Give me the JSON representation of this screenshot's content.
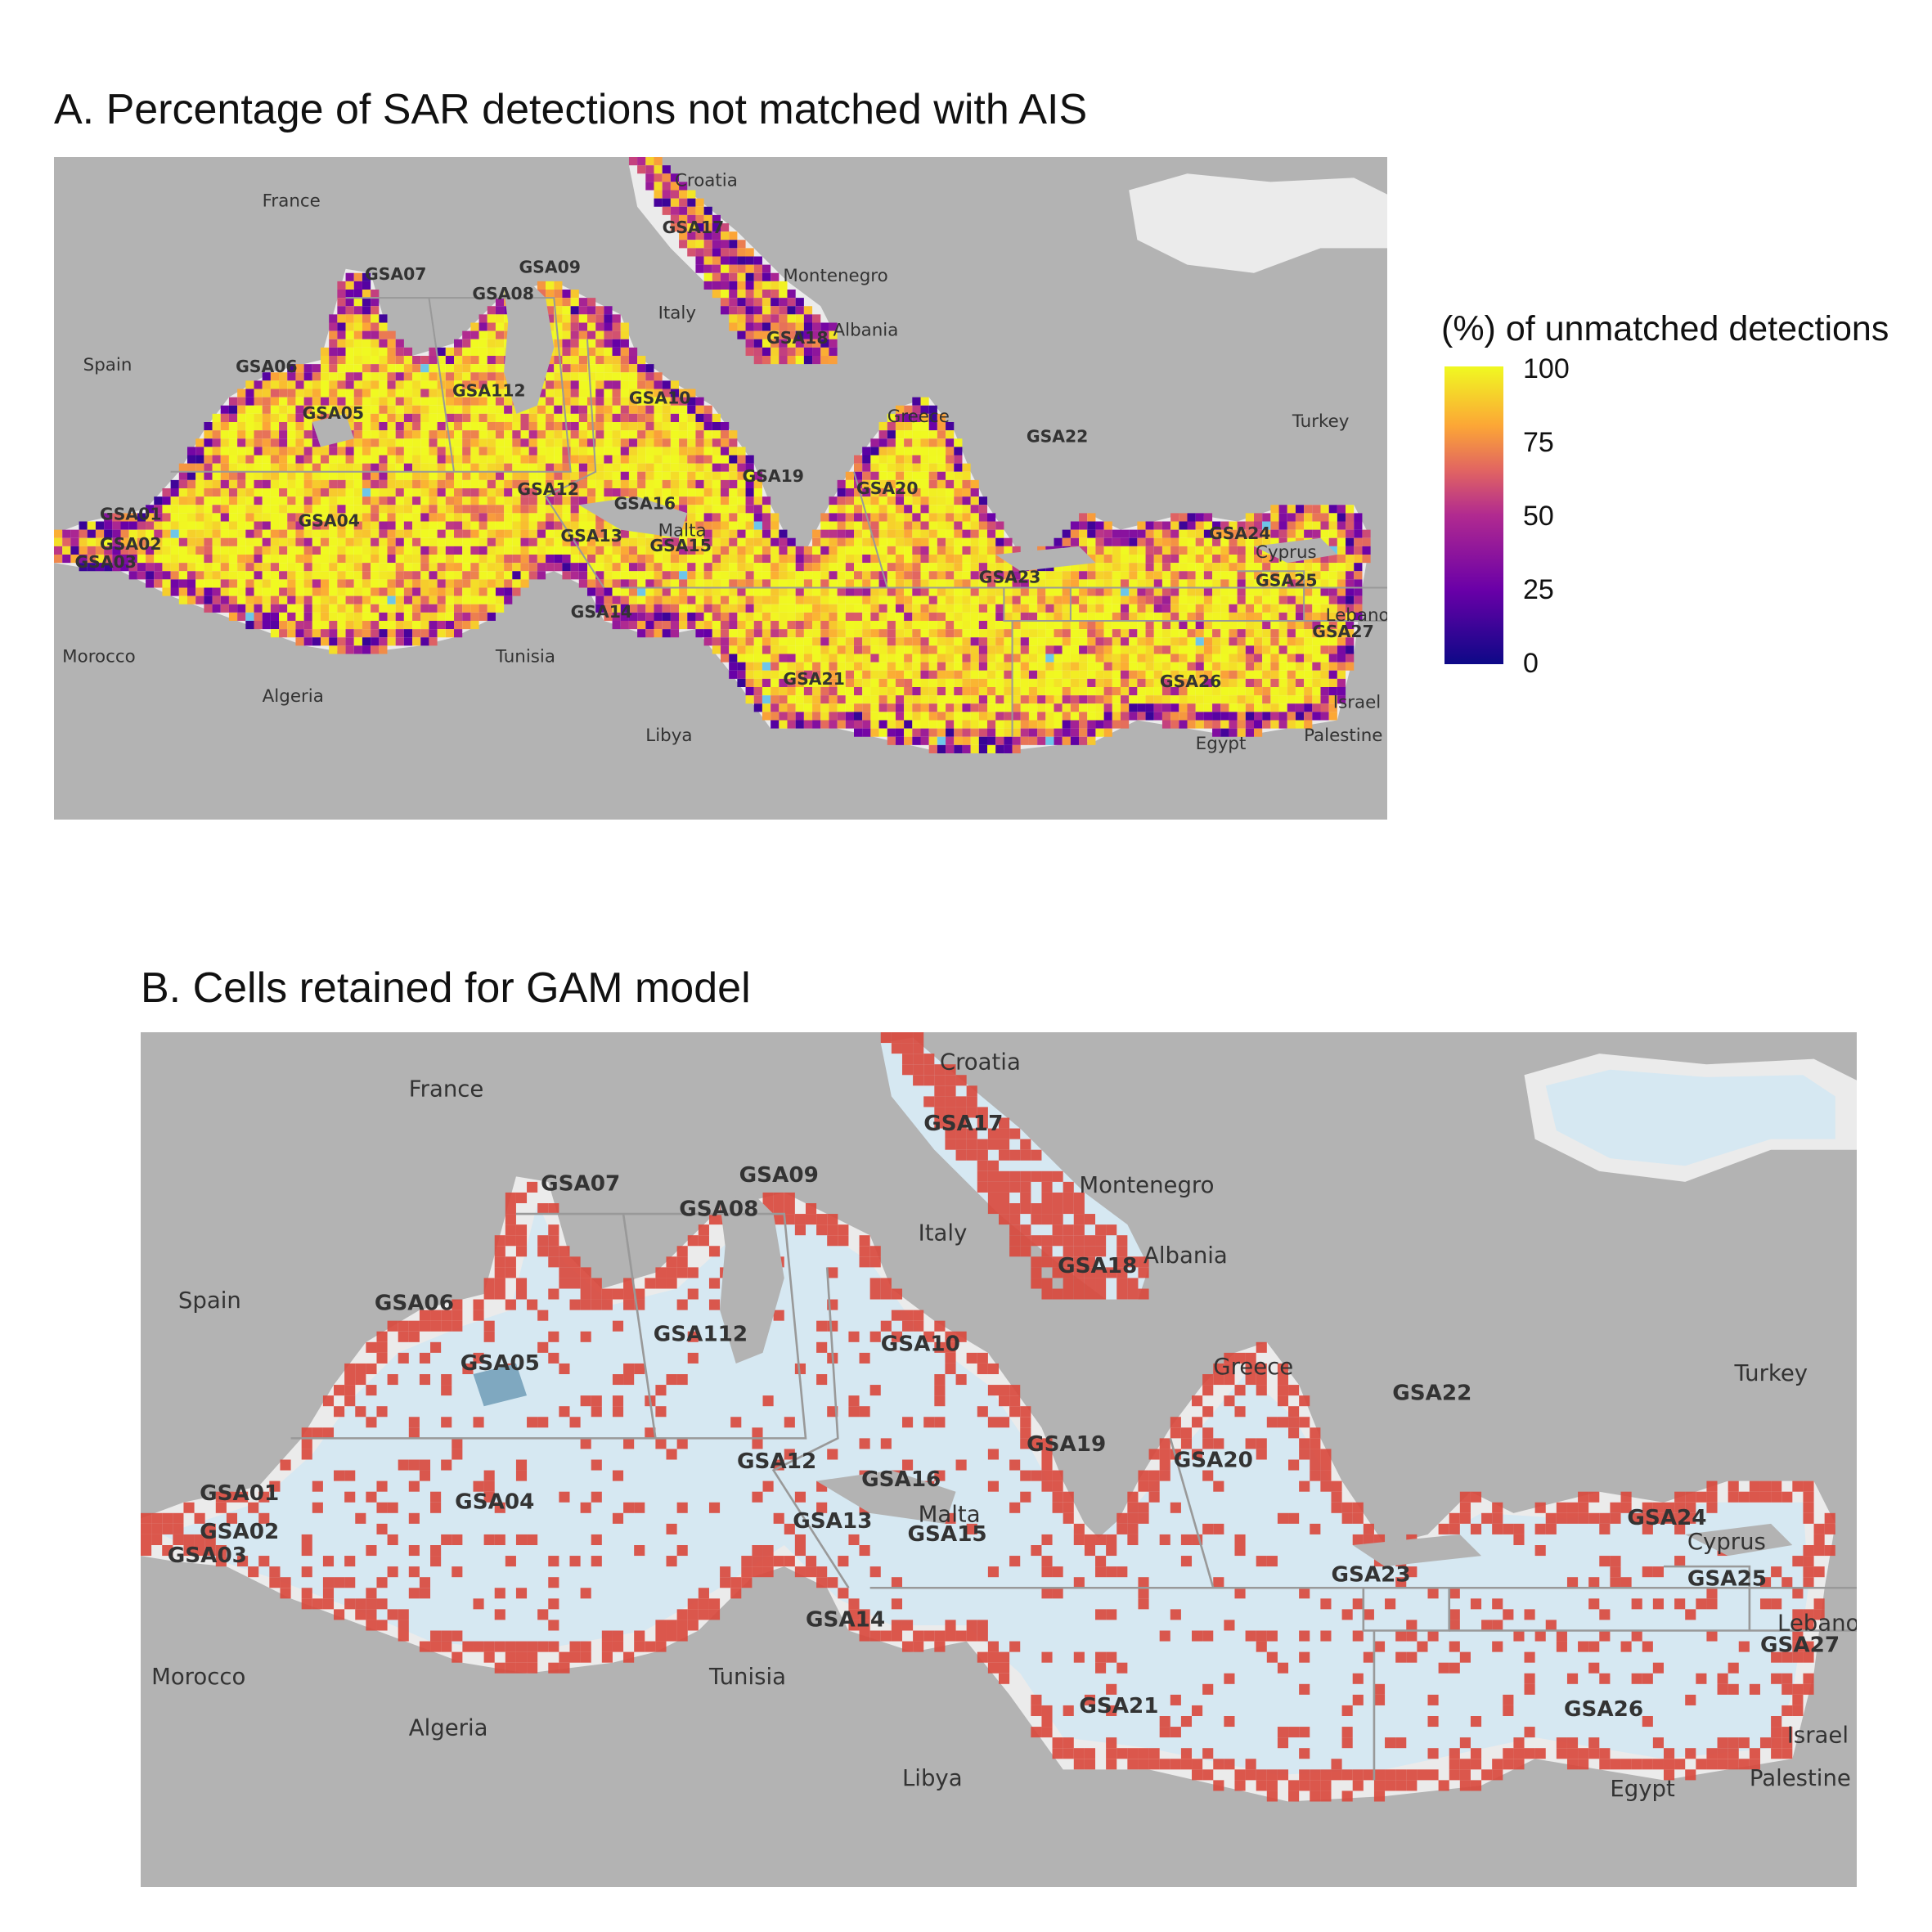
{
  "panel_a": {
    "title": "A. Percentage of SAR detections not matched with AIS",
    "legend": {
      "title": "(%) of unmatched detections",
      "ticks": [
        "100",
        "75",
        "50",
        "25",
        "0"
      ],
      "scale": "plasma",
      "range": [
        0,
        100
      ]
    }
  },
  "panel_b": {
    "title": "B. Cells retained for GAM model"
  },
  "colors": {
    "land": "#b3b3b3",
    "sea_a": "#ebebeb",
    "sea_b": "#d6e8f2",
    "retained_cell": "#d9473b",
    "missing_cell": "#6ec6e8",
    "gsa_border": "#999999"
  },
  "countries": [
    "France",
    "Spain",
    "Morocco",
    "Algeria",
    "Tunisia",
    "Libya",
    "Egypt",
    "Italy",
    "Croatia",
    "Montenegro",
    "Albania",
    "Greece",
    "Turkey",
    "Cyprus",
    "Lebanon",
    "Israel",
    "Palestine",
    "Malta"
  ],
  "gsa_labels": [
    "GSA01",
    "GSA02",
    "GSA03",
    "GSA04",
    "GSA05",
    "GSA06",
    "GSA07",
    "GSA08",
    "GSA09",
    "GSA10",
    "GSA112",
    "GSA12",
    "GSA13",
    "GSA14",
    "GSA15",
    "GSA16",
    "GSA17",
    "GSA18",
    "GSA19",
    "GSA20",
    "GSA21",
    "GSA22",
    "GSA23",
    "GSA24",
    "GSA25",
    "GSA26",
    "GSA27"
  ]
}
